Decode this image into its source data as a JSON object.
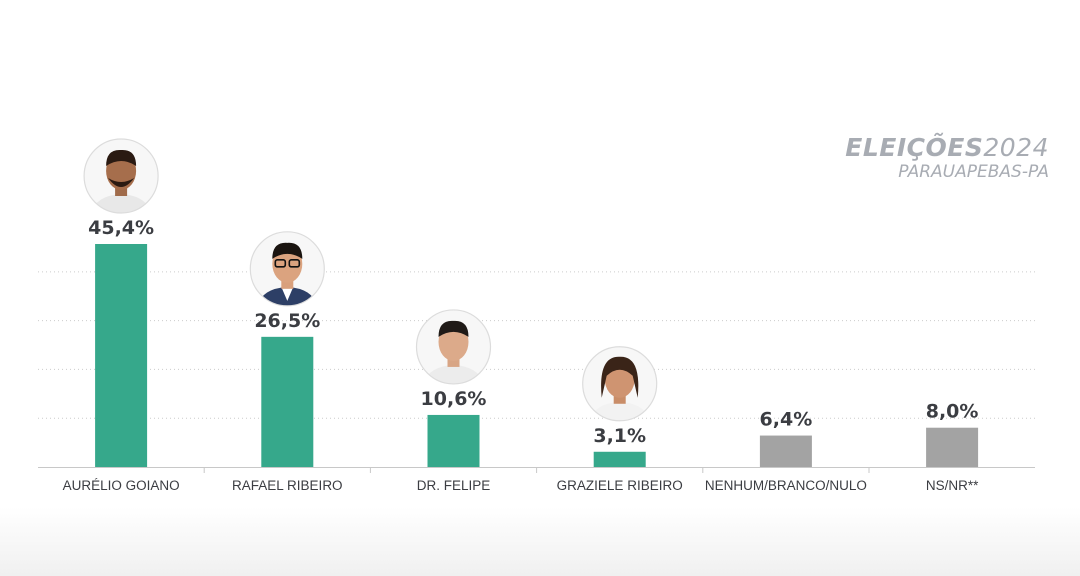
{
  "brand": {
    "title_bold": "ELEIÇÕES",
    "title_year": "2024",
    "subtitle": "PARAUAPEBAS-PA"
  },
  "colors": {
    "candidate": "#36a88b",
    "other": "#a3a3a3",
    "grid": "#cccccc",
    "axis": "#c8c8c8",
    "text": "#3b3d42"
  },
  "chart_data": {
    "type": "bar",
    "title": "",
    "xlabel": "",
    "ylabel": "",
    "ylim": [
      0,
      50
    ],
    "grid": true,
    "categories": [
      "AURÉLIO GOIANO",
      "RAFAEL RIBEIRO",
      "DR. FELIPE",
      "GRAZIELE RIBEIRO",
      "NENHUM/BRANCO/NULO",
      "NS/NR**"
    ],
    "values": [
      45.4,
      26.5,
      10.6,
      3.1,
      6.4,
      8.0
    ],
    "value_labels": [
      "45,4%",
      "26,5%",
      "10,6%",
      "3,1%",
      "6,4%",
      "8,0%"
    ],
    "bar_kind": [
      "candidate",
      "candidate",
      "candidate",
      "candidate",
      "other",
      "other"
    ],
    "has_photo": [
      true,
      true,
      true,
      true,
      false,
      false
    ]
  }
}
